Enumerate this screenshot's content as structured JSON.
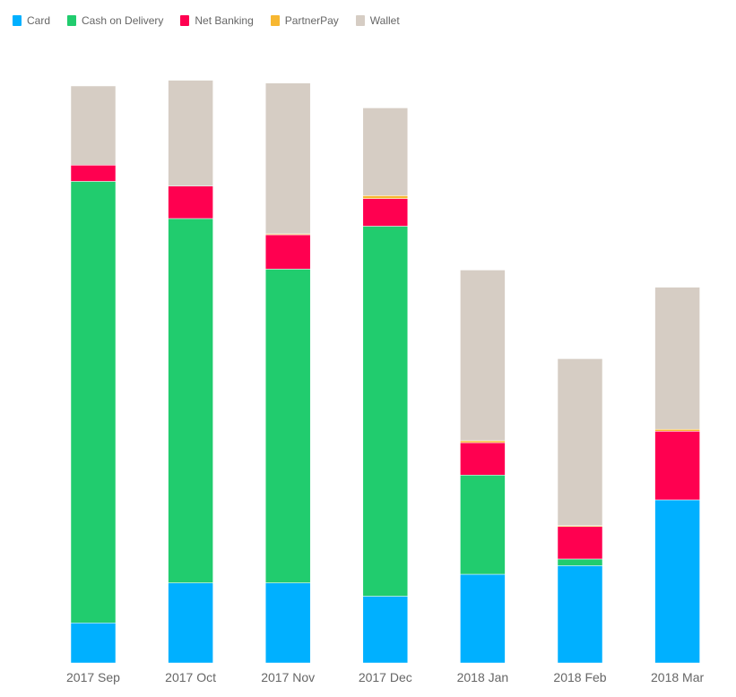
{
  "chart_data": {
    "type": "bar",
    "stacked": true,
    "categories": [
      "2017 Sep",
      "2017 Oct",
      "2017 Nov",
      "2017 Dec",
      "2018 Jan",
      "2018 Feb",
      "2018 Mar"
    ],
    "series": [
      {
        "name": "Card",
        "color": "#00b0ff",
        "values": [
          42,
          84,
          84,
          70,
          93,
          102,
          171
        ]
      },
      {
        "name": "Cash on Delivery",
        "color": "#21cc6e",
        "values": [
          463,
          382,
          329,
          388,
          104,
          7,
          0
        ]
      },
      {
        "name": "Net Banking",
        "color": "#ff0050",
        "values": [
          17,
          34,
          36,
          29,
          34,
          34,
          72
        ]
      },
      {
        "name": "PartnerPay",
        "color": "#f7b731",
        "values": [
          0,
          0,
          1,
          3,
          2,
          1,
          2
        ]
      },
      {
        "name": "Wallet",
        "color": "#d6cdc4",
        "values": [
          83,
          111,
          158,
          92,
          179,
          175,
          149
        ]
      }
    ],
    "title": "",
    "xlabel": "",
    "ylabel": "",
    "ylim": [
      0,
      620
    ],
    "grid": false,
    "legend_position": "top-left"
  }
}
